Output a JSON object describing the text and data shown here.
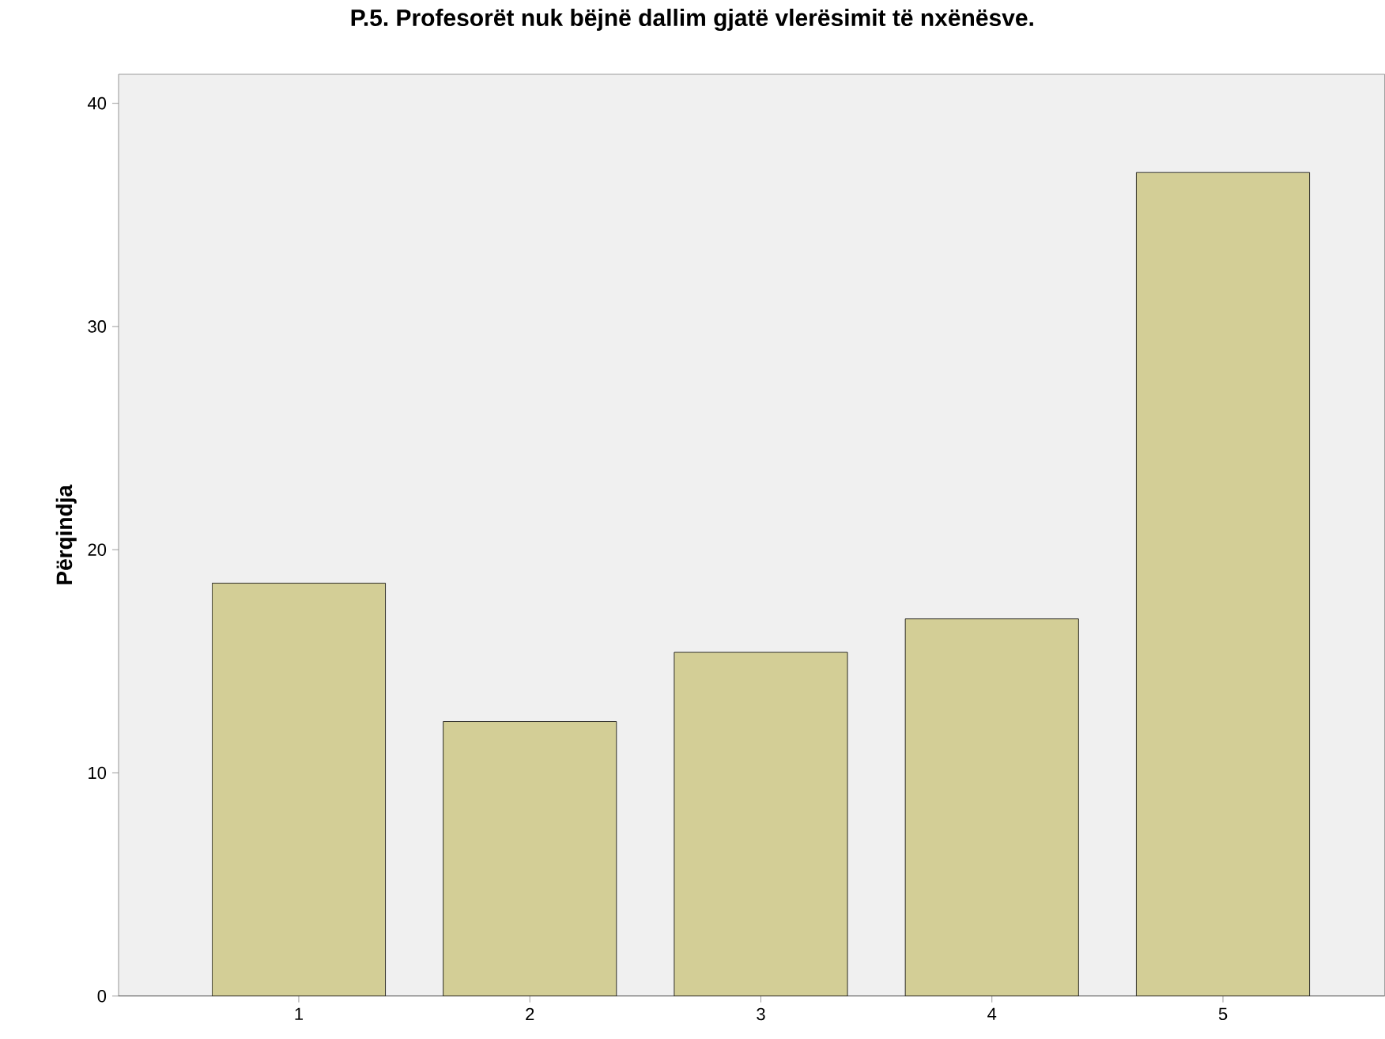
{
  "chart_data": {
    "type": "bar",
    "title": "P.5. Profesorët nuk bëjnë dallim gjatë vlerësimit të nxënësve.",
    "ylabel": "Përqindja",
    "categories": [
      "1",
      "2",
      "3",
      "4",
      "5"
    ],
    "values": [
      18.5,
      12.3,
      15.4,
      16.9,
      36.9
    ],
    "color": "#d3ce96",
    "ylim": [
      0,
      41.3
    ],
    "yticks": [
      0,
      10,
      20,
      30,
      40
    ]
  }
}
